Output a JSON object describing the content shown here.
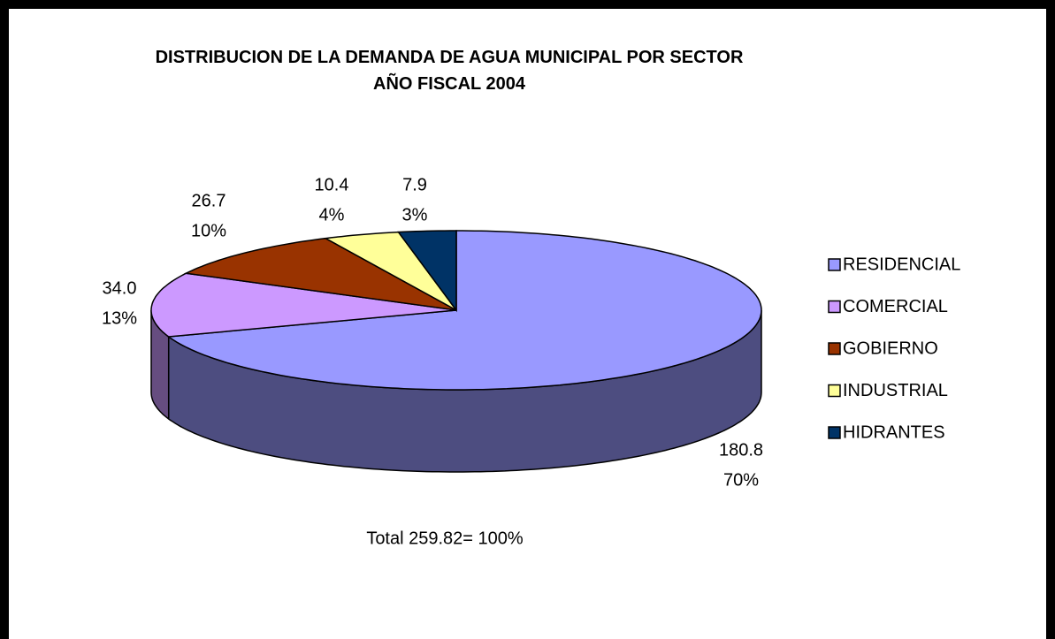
{
  "chart_data": {
    "type": "pie3d",
    "title": "DISTRIBUCION DE LA DEMANDA DE AGUA MUNICIPAL POR SECTOR",
    "subtitle": "AÑO FISCAL 2004",
    "categories": [
      "RESIDENCIAL",
      "COMERCIAL",
      "GOBIERNO",
      "INDUSTRIAL",
      "HIDRANTES"
    ],
    "values": [
      180.8,
      34,
      26.7,
      10.4,
      7.9
    ],
    "value_labels": [
      "180.8",
      "34.0",
      "26.7",
      "10.4",
      "7.9"
    ],
    "percent_labels": [
      "70%",
      "13%",
      "10%",
      "4%",
      "3%"
    ],
    "colors": [
      "#9999ff",
      "#cc99ff",
      "#993300",
      "#ffff99",
      "#003366"
    ],
    "annotation": "Total 259.82= 100%",
    "legend": "right"
  }
}
